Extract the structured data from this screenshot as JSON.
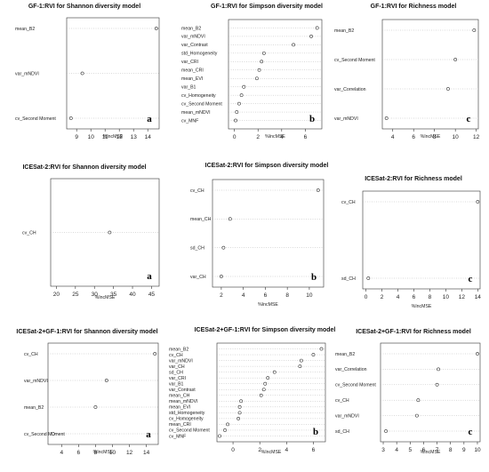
{
  "chart_data": [
    {
      "type": "scatter",
      "title": "GF-1:RVI for Shannon diversity model",
      "panel_letter": "a",
      "xlabel": "%IncMSE",
      "xticks": [
        9,
        10,
        11,
        12,
        13,
        14
      ],
      "xlim": [
        8.3,
        14.8
      ],
      "categories": [
        "mean_B2",
        "var_mNDVI",
        "cv_Second Moment"
      ],
      "values": [
        14.6,
        9.4,
        8.6
      ]
    },
    {
      "type": "scatter",
      "title": "GF-1:RVI for Simpson diversity model",
      "panel_letter": "b",
      "xlabel": "%IncMSE",
      "xticks": [
        0,
        2,
        4,
        6
      ],
      "xlim": [
        -0.5,
        7.4
      ],
      "categories": [
        "mean_B2",
        "var_mNDVI",
        "var_Contrast",
        "std_Homogeneity",
        "var_CRI",
        "mean_CRI",
        "mean_EVI",
        "var_B1",
        "cv_Homogeneity",
        "cv_Second Moment",
        "mean_mNDVI",
        "cv_MNF"
      ],
      "values": [
        7.0,
        6.5,
        5.0,
        2.5,
        2.3,
        2.1,
        1.9,
        0.8,
        0.6,
        0.4,
        0.2,
        0.1
      ]
    },
    {
      "type": "scatter",
      "title": "GF-1:RVI for Richness model",
      "panel_letter": "c",
      "xlabel": "%IncMSE",
      "xticks": [
        4,
        6,
        8,
        10,
        12
      ],
      "xlim": [
        3.0,
        12.2
      ],
      "categories": [
        "mean_B2",
        "cv_Second Moment",
        "var_Correlation",
        "var_mNDVI"
      ],
      "values": [
        11.8,
        10.0,
        9.3,
        3.4
      ]
    },
    {
      "type": "scatter",
      "title": "ICESat-2:RVI for Shannon diversity model",
      "panel_letter": "a",
      "xlabel": "%IncMSE",
      "xticks": [
        20,
        25,
        30,
        35,
        40,
        45
      ],
      "xlim": [
        18.5,
        47
      ],
      "categories": [
        "cv_CH"
      ],
      "values": [
        34
      ]
    },
    {
      "type": "scatter",
      "title": "ICESat-2:RVI for Simpson diversity model",
      "panel_letter": "b",
      "xlabel": "%IncMSE",
      "xticks": [
        2,
        4,
        6,
        8,
        10
      ],
      "xlim": [
        1.2,
        11.3
      ],
      "categories": [
        "cv_CH",
        "mean_CH",
        "sd_CH",
        "var_CH"
      ],
      "values": [
        10.8,
        2.8,
        2.2,
        2.0
      ]
    },
    {
      "type": "scatter",
      "title": "ICESat-2:RVI for Richness model",
      "panel_letter": "c",
      "xlabel": "%IncMSE",
      "xticks": [
        0,
        2,
        4,
        6,
        8,
        10,
        12,
        14
      ],
      "xlim": [
        -0.4,
        14.3
      ],
      "categories": [
        "cv_CH",
        "sd_CH"
      ],
      "values": [
        14.0,
        0.3
      ]
    },
    {
      "type": "scatter",
      "title": "ICESat-2+GF-1:RVI for Shannon diversity model",
      "panel_letter": "a",
      "xlabel": "%IncMSE",
      "xticks": [
        4,
        6,
        8,
        10,
        12,
        14
      ],
      "xlim": [
        2.4,
        15.4
      ],
      "categories": [
        "cv_CH",
        "var_mNDVI",
        "mean_B2",
        "cv_Second Moment"
      ],
      "values": [
        15.0,
        9.3,
        8.0,
        3.0
      ]
    },
    {
      "type": "scatter",
      "title": "ICESat-2+GF-1:RVI for Simpson diversity model",
      "panel_letter": "b",
      "xlabel": "%IncMSE",
      "xticks": [
        0,
        2,
        4,
        6
      ],
      "xlim": [
        -1.2,
        6.9
      ],
      "categories": [
        "mean_B2",
        "cv_CH",
        "var_mNDVI",
        "var_CH",
        "sd_CH",
        "var_CRI",
        "var_B1",
        "var_Contrast",
        "mean_CH",
        "mean_mNDVI",
        "mean_EVI",
        "std_Homogeneity",
        "cv_Homogeneity",
        "mean_CRI",
        "cv_Second Moment",
        "cv_MNF"
      ],
      "values": [
        6.6,
        6.0,
        5.1,
        5.0,
        3.1,
        2.6,
        2.4,
        2.3,
        2.1,
        0.6,
        0.5,
        0.5,
        0.4,
        -0.4,
        -0.6,
        -1.0
      ]
    },
    {
      "type": "scatter",
      "title": "ICESat-2+GF-1:RVI for Richness model",
      "panel_letter": "c",
      "xlabel": "%IncMSE",
      "xticks": [
        3,
        4,
        5,
        6,
        7,
        8,
        9,
        10
      ],
      "xlim": [
        2.8,
        10.2
      ],
      "categories": [
        "mean_B2",
        "var_Correlation",
        "cv_Second Moment",
        "cv_CH",
        "var_mNDVI",
        "sd_CH"
      ],
      "values": [
        10.0,
        7.1,
        7.0,
        5.6,
        5.5,
        3.2
      ]
    }
  ]
}
